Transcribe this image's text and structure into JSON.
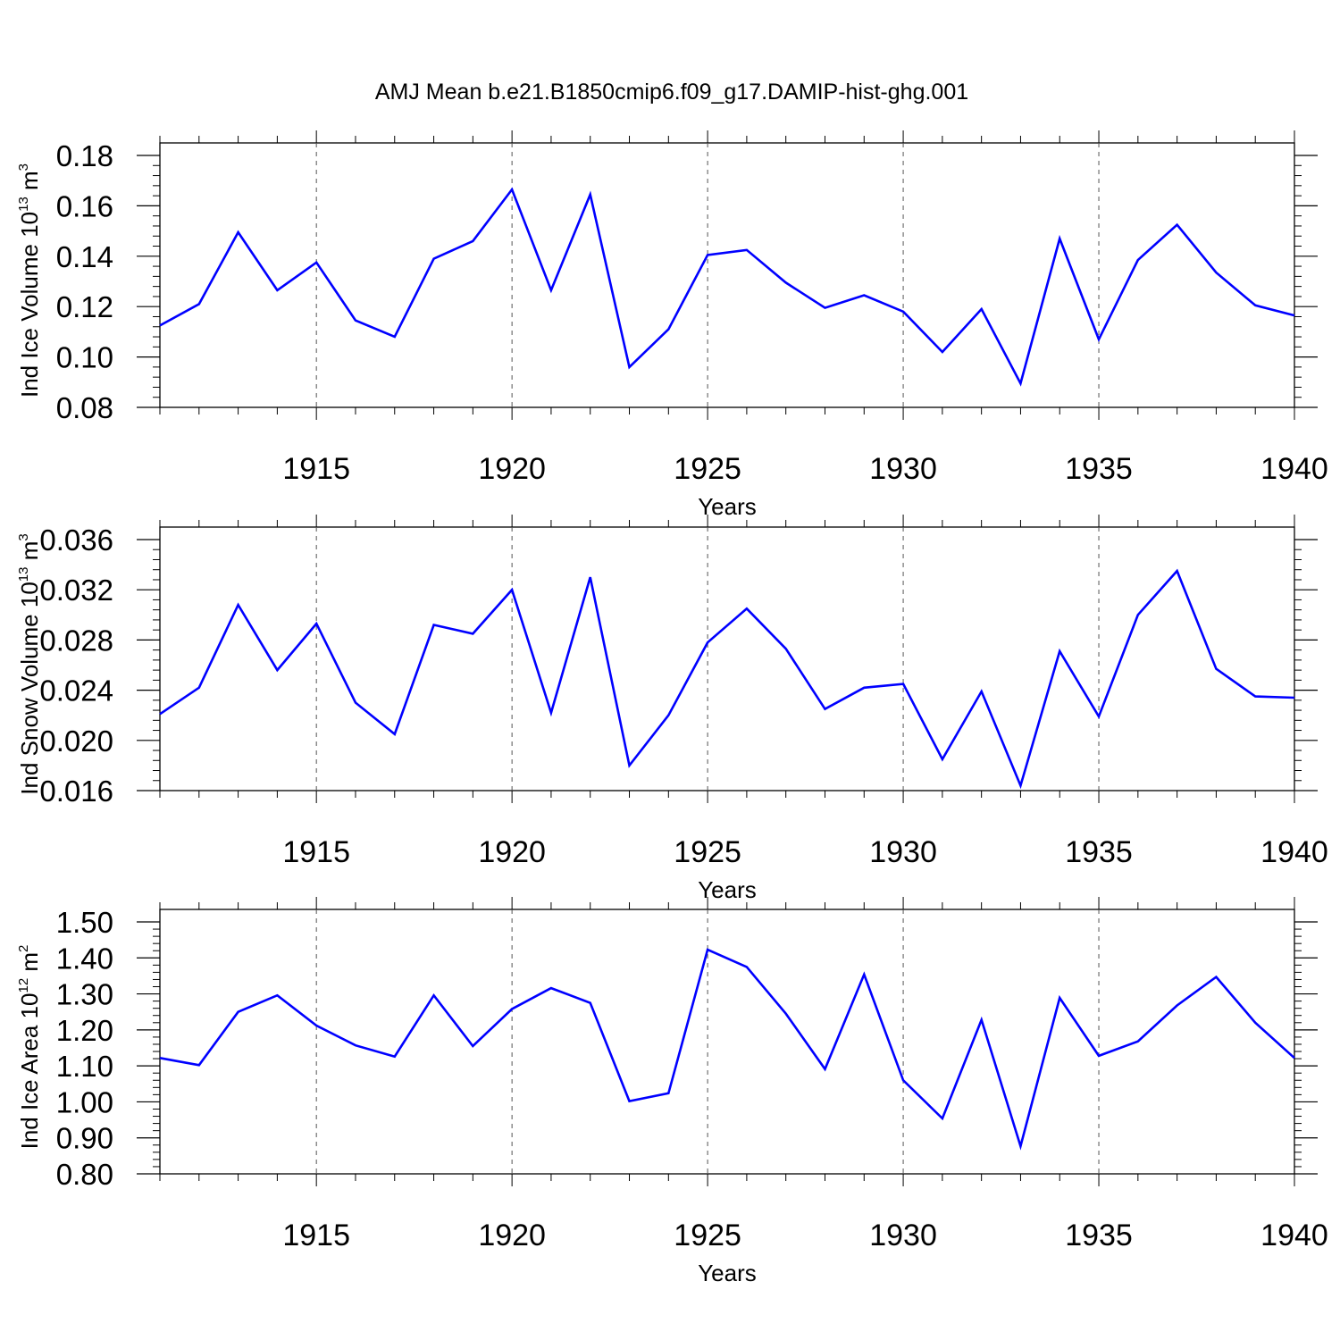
{
  "title": "AMJ Mean b.e21.B1850cmip6.f09_g17.DAMIP-hist-ghg.001",
  "colors": {
    "line": "#0000ff",
    "axis": "#000000",
    "grid": "#555555"
  },
  "chart_data": [
    {
      "type": "line",
      "ylabel": {
        "base": "Ind Ice Volume 10",
        "exp": "13",
        "unit": " m",
        "unit_exp": "3"
      },
      "xlabel": "Years",
      "xlim": [
        1911,
        1940
      ],
      "ylim": [
        0.08,
        0.18
      ],
      "yticks": [
        "0.08",
        "0.10",
        "0.12",
        "0.14",
        "0.16",
        "0.18"
      ],
      "xticks": [
        "1915",
        "1920",
        "1925",
        "1930",
        "1935",
        "1940"
      ],
      "grid": "dashed vertical at major x ticks",
      "x": [
        1911,
        1912,
        1913,
        1914,
        1915,
        1916,
        1917,
        1918,
        1919,
        1920,
        1921,
        1922,
        1923,
        1924,
        1925,
        1926,
        1927,
        1928,
        1929,
        1930,
        1931,
        1932,
        1933,
        1934,
        1935,
        1936,
        1937,
        1938,
        1939,
        1940
      ],
      "values": [
        0.1125,
        0.121,
        0.1495,
        0.1265,
        0.1375,
        0.1145,
        0.108,
        0.139,
        0.146,
        0.1665,
        0.1265,
        0.1645,
        0.096,
        0.111,
        0.1405,
        0.1425,
        0.1295,
        0.1195,
        0.1245,
        0.118,
        0.102,
        0.119,
        0.0895,
        0.147,
        0.107,
        0.1385,
        0.1525,
        0.1335,
        0.1205,
        0.1165
      ]
    },
    {
      "type": "line",
      "ylabel": {
        "base": "Ind Snow Volume 10",
        "exp": "13",
        "unit": " m",
        "unit_exp": "3"
      },
      "xlabel": "Years",
      "xlim": [
        1911,
        1940
      ],
      "ylim": [
        0.015,
        0.037
      ],
      "yticks": [
        "0.016",
        "0.020",
        "0.024",
        "0.028",
        "0.032",
        "0.036"
      ],
      "xticks": [
        "1915",
        "1920",
        "1925",
        "1930",
        "1935",
        "1940"
      ],
      "grid": "dashed vertical at major x ticks",
      "x": [
        1911,
        1912,
        1913,
        1914,
        1915,
        1916,
        1917,
        1918,
        1919,
        1920,
        1921,
        1922,
        1923,
        1924,
        1925,
        1926,
        1927,
        1928,
        1929,
        1930,
        1931,
        1932,
        1933,
        1934,
        1935,
        1936,
        1937,
        1938,
        1939,
        1940
      ],
      "values": [
        0.0221,
        0.0242,
        0.0308,
        0.0256,
        0.0293,
        0.023,
        0.0205,
        0.0292,
        0.0285,
        0.032,
        0.0222,
        0.033,
        0.018,
        0.022,
        0.0278,
        0.0305,
        0.0273,
        0.0225,
        0.0242,
        0.0245,
        0.0185,
        0.0239,
        0.0164,
        0.0271,
        0.0219,
        0.03,
        0.0335,
        0.0257,
        0.0235,
        0.0234
      ]
    },
    {
      "type": "line",
      "ylabel": {
        "base": "Ind Ice Area 10",
        "exp": "12",
        "unit": " m",
        "unit_exp": "2"
      },
      "xlabel": "Years",
      "xlim": [
        1911,
        1940
      ],
      "ylim": [
        0.8,
        1.5
      ],
      "yticks": [
        "0.80",
        "0.90",
        "1.00",
        "1.10",
        "1.20",
        "1.30",
        "1.40",
        "1.50"
      ],
      "xticks": [
        "1915",
        "1920",
        "1925",
        "1930",
        "1935",
        "1940"
      ],
      "grid": "dashed vertical at major x ticks",
      "x": [
        1911,
        1912,
        1913,
        1914,
        1915,
        1916,
        1917,
        1918,
        1919,
        1920,
        1921,
        1922,
        1923,
        1924,
        1925,
        1926,
        1927,
        1928,
        1929,
        1930,
        1931,
        1932,
        1933,
        1934,
        1935,
        1936,
        1937,
        1938,
        1939,
        1940
      ],
      "values": [
        1.122,
        1.102,
        1.25,
        1.296,
        1.212,
        1.157,
        1.126,
        1.296,
        1.155,
        1.258,
        1.316,
        1.275,
        1.002,
        1.024,
        1.423,
        1.375,
        1.245,
        1.091,
        1.354,
        1.06,
        0.954,
        1.228,
        0.877,
        1.289,
        1.128,
        1.168,
        1.268,
        1.347,
        1.22,
        1.122
      ]
    }
  ]
}
